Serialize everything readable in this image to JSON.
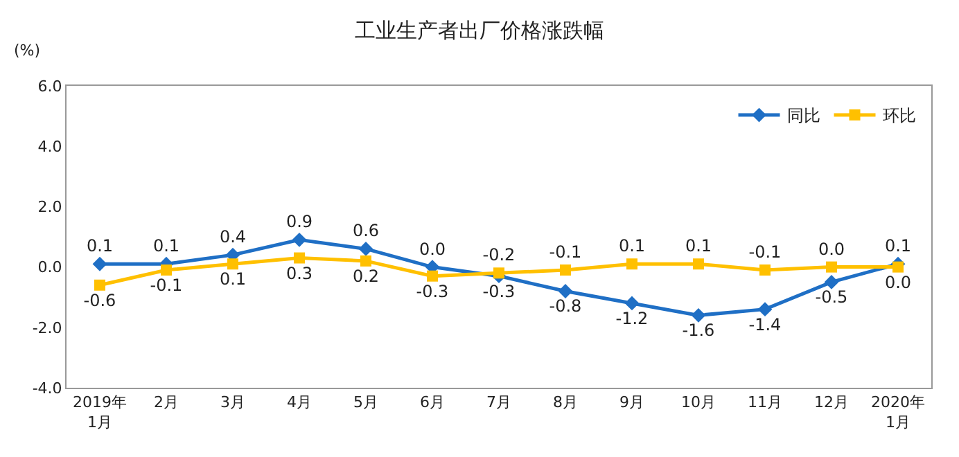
{
  "chart_data": {
    "type": "line",
    "title": "工业生产者出厂价格涨跌幅",
    "ylabel": "(%)",
    "categories": [
      "2019年\n1月",
      "2月",
      "3月",
      "4月",
      "5月",
      "6月",
      "7月",
      "8月",
      "9月",
      "10月",
      "11月",
      "12月",
      "2020年\n1月"
    ],
    "series": [
      {
        "name": "同比",
        "color": "#1f6fc5",
        "marker": "diamond",
        "values": [
          0.1,
          0.1,
          0.4,
          0.9,
          0.6,
          0.0,
          -0.3,
          -0.8,
          -1.2,
          -1.6,
          -1.4,
          -0.5,
          0.1
        ],
        "value_labels": [
          "0.1",
          "0.1",
          "0.4",
          "0.9",
          "0.6",
          "0.0",
          "-0.3",
          "-0.8",
          "-1.2",
          "-1.6",
          "-1.4",
          "-0.5",
          "0.1"
        ]
      },
      {
        "name": "环比",
        "color": "#ffc000",
        "marker": "square",
        "values": [
          -0.6,
          -0.1,
          0.1,
          0.3,
          0.2,
          -0.3,
          -0.2,
          -0.1,
          0.1,
          0.1,
          -0.1,
          0.0,
          0.0
        ],
        "value_labels": [
          "-0.6",
          "-0.1",
          "0.1",
          "0.3",
          "0.2",
          "-0.3",
          "-0.2",
          "-0.1",
          "0.1",
          "0.1",
          "-0.1",
          "0.0",
          "0.0"
        ]
      }
    ],
    "ylim": [
      -4.0,
      6.0
    ],
    "yticks": [
      {
        "value": -4,
        "label": "-4.0"
      },
      {
        "value": -2,
        "label": "-2.0"
      },
      {
        "value": 0,
        "label": "0.0"
      },
      {
        "value": 2,
        "label": "2.0"
      },
      {
        "value": 4,
        "label": "4.0"
      },
      {
        "value": 6,
        "label": "6.0"
      }
    ],
    "legend": "top right",
    "line_style": "solid"
  }
}
